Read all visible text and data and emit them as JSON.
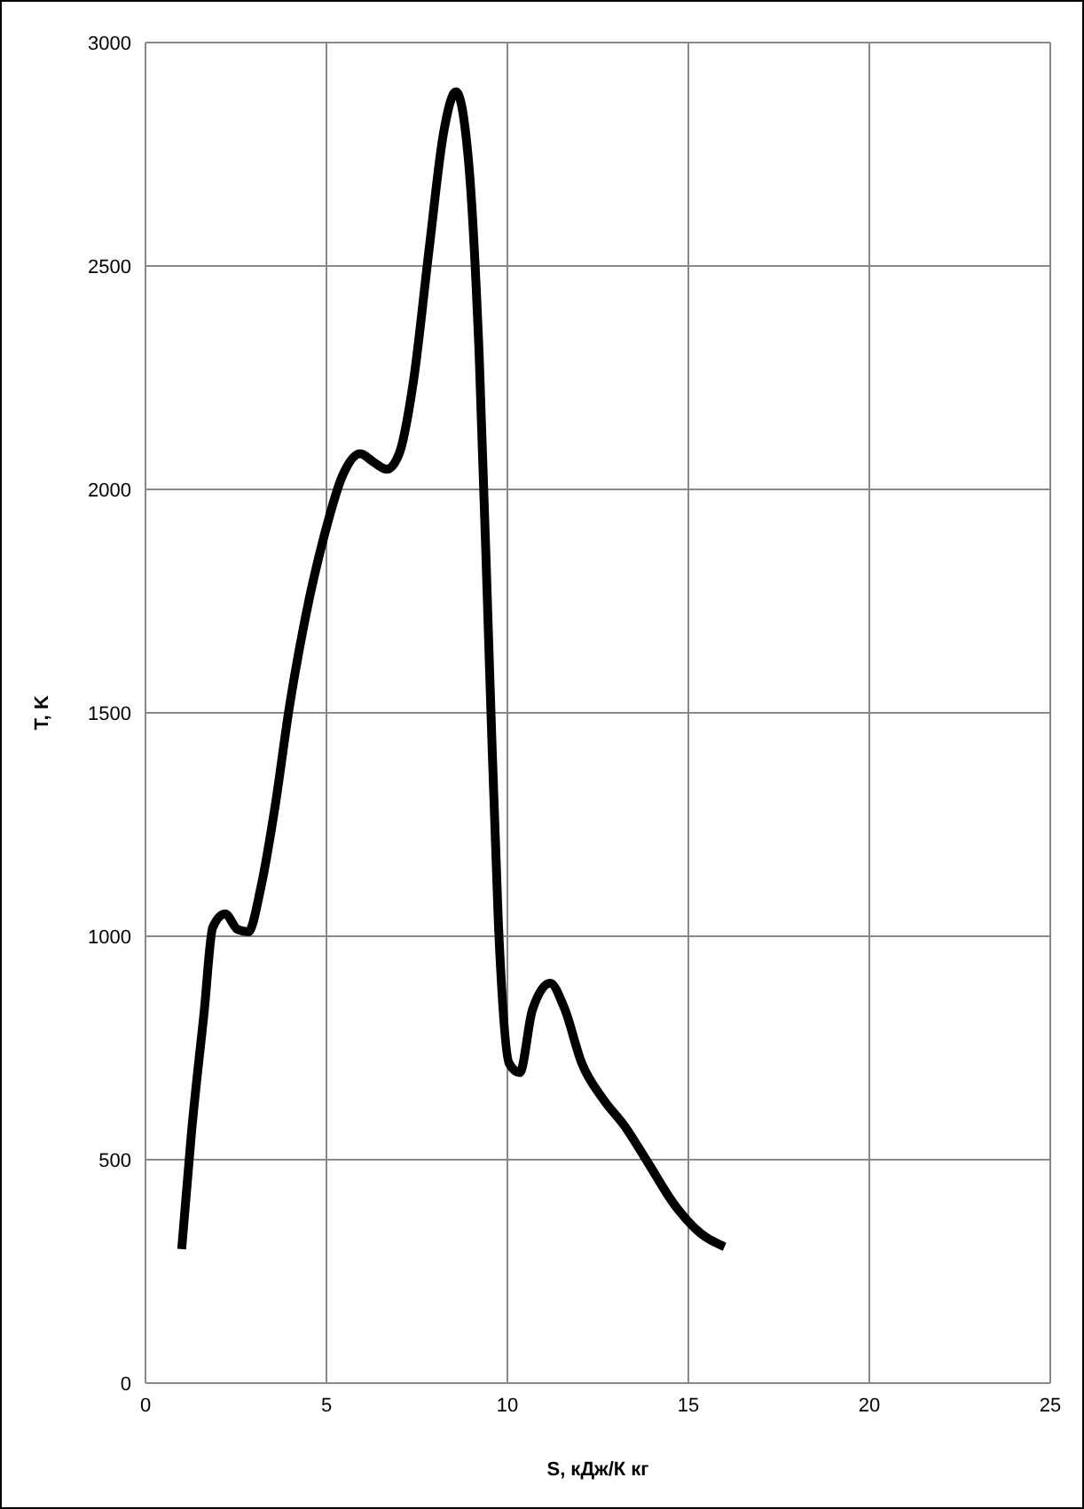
{
  "chart_data": {
    "type": "line",
    "xlabel": "S, кДж/К кг",
    "ylabel": "T, K",
    "x": [
      1,
      1.27,
      1.62,
      1.86,
      2.2,
      2.55,
      2.84,
      3.19,
      3.58,
      3.97,
      4.41,
      4.95,
      5.44,
      5.93,
      6.32,
      6.67,
      7.01,
      7.4,
      7.84,
      8.24,
      8.58,
      8.92,
      9.22,
      9.51,
      9.75,
      10.05,
      10.34,
      10.69,
      11.18,
      11.57,
      12.06,
      12.65,
      13.24,
      13.87,
      14.61,
      15.34,
      16
    ],
    "series": [
      {
        "color": "#000000",
        "values": [
          300,
          560,
          830,
          1020,
          1050,
          1015,
          1010,
          1110,
          1290,
          1510,
          1710,
          1900,
          2030,
          2080,
          2060,
          2045,
          2080,
          2240,
          2540,
          2800,
          2890,
          2740,
          2300,
          1590,
          1030,
          715,
          695,
          835,
          895,
          840,
          715,
          635,
          575,
          495,
          400,
          335,
          305
        ]
      }
    ],
    "xlim": [
      0,
      25
    ],
    "xticks": [
      0,
      5,
      10,
      15,
      20,
      25
    ],
    "ylim": [
      0,
      3000
    ],
    "yticks": [
      0,
      500,
      1000,
      1500,
      2000,
      2500,
      3000
    ],
    "grid": true,
    "marker": "none",
    "line_style": "solid",
    "legend": false
  }
}
